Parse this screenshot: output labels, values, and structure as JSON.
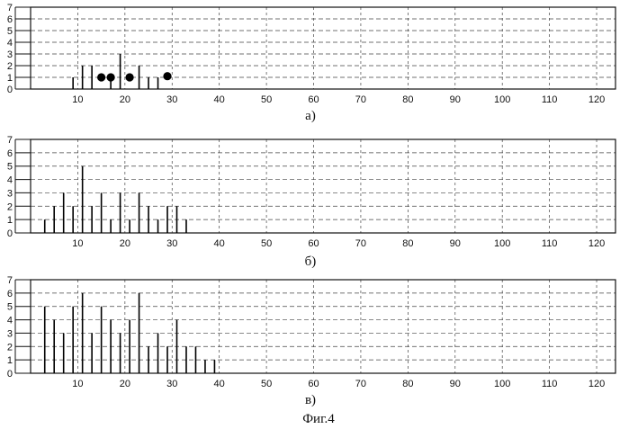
{
  "figure_caption": "Фиг.4",
  "chart_data": [
    {
      "type": "bar",
      "panel_label": "а)",
      "x_ticks": [
        10,
        20,
        30,
        40,
        50,
        60,
        70,
        80,
        90,
        100,
        110,
        120
      ],
      "y_ticks": [
        0,
        1,
        2,
        3,
        4,
        5,
        6,
        7
      ],
      "xlim": [
        0,
        124
      ],
      "ylim": [
        0,
        7
      ],
      "grid": true,
      "x": [
        9,
        11,
        13,
        17,
        19,
        23,
        25,
        27
      ],
      "values": [
        1,
        2,
        2,
        1,
        3,
        2,
        1,
        1
      ],
      "markers": {
        "x": [
          15,
          17,
          21,
          29
        ],
        "y": [
          1,
          1,
          1,
          1.1
        ]
      }
    },
    {
      "type": "bar",
      "panel_label": "б)",
      "x_ticks": [
        10,
        20,
        30,
        40,
        50,
        60,
        70,
        80,
        90,
        100,
        110,
        120
      ],
      "y_ticks": [
        0,
        1,
        2,
        3,
        4,
        5,
        6,
        7
      ],
      "xlim": [
        0,
        124
      ],
      "ylim": [
        0,
        7
      ],
      "grid": true,
      "x": [
        3,
        5,
        7,
        9,
        11,
        13,
        15,
        17,
        19,
        21,
        23,
        25,
        27,
        29,
        31,
        33
      ],
      "values": [
        1,
        2,
        3,
        2,
        5,
        2,
        3,
        1,
        3,
        1,
        3,
        2,
        1,
        2,
        2,
        1
      ]
    },
    {
      "type": "bar",
      "panel_label": "в)",
      "x_ticks": [
        10,
        20,
        30,
        40,
        50,
        60,
        70,
        80,
        90,
        100,
        110,
        120
      ],
      "y_ticks": [
        0,
        1,
        2,
        3,
        4,
        5,
        6,
        7
      ],
      "xlim": [
        0,
        124
      ],
      "ylim": [
        0,
        7
      ],
      "grid": true,
      "x": [
        3,
        5,
        7,
        9,
        11,
        13,
        15,
        17,
        19,
        21,
        23,
        25,
        27,
        29,
        31,
        33,
        35,
        37,
        39
      ],
      "values": [
        5,
        4,
        3,
        5,
        6,
        3,
        5,
        4,
        3,
        4,
        6,
        2,
        3,
        2,
        4,
        2,
        2,
        1,
        1
      ]
    }
  ]
}
